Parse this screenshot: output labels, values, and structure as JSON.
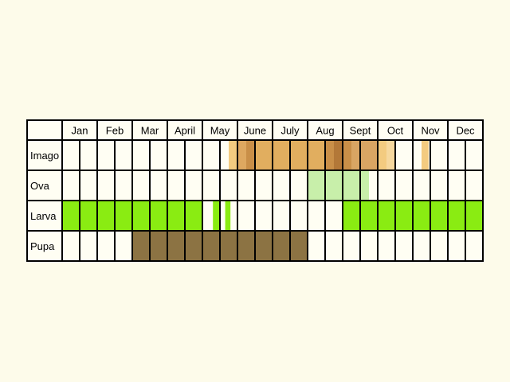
{
  "chart_data": {
    "type": "table",
    "months": [
      "Jan",
      "Feb",
      "Mar",
      "April",
      "May",
      "June",
      "July",
      "Aug",
      "Sept",
      "Oct",
      "Nov",
      "Dec"
    ],
    "rows": [
      {
        "label": "Imago",
        "segments": [
          {
            "start": 9.5,
            "end": 10.0,
            "color": "#f3cb80"
          },
          {
            "start": 10.0,
            "end": 10.5,
            "color": "#dea860"
          },
          {
            "start": 10.5,
            "end": 11.0,
            "color": "#c98f48"
          },
          {
            "start": 11.0,
            "end": 15.0,
            "color": "#e1ae5f"
          },
          {
            "start": 15.0,
            "end": 15.5,
            "color": "#c98f48"
          },
          {
            "start": 15.5,
            "end": 16.0,
            "color": "#b37838"
          },
          {
            "start": 16.0,
            "end": 16.5,
            "color": "#c98f48"
          },
          {
            "start": 16.5,
            "end": 18.0,
            "color": "#d9a563"
          },
          {
            "start": 18.0,
            "end": 18.5,
            "color": "#f3cb80"
          },
          {
            "start": 18.5,
            "end": 19.0,
            "color": "#f6d89e"
          },
          {
            "start": 20.5,
            "end": 20.9,
            "color": "#f3cb80"
          }
        ]
      },
      {
        "label": "Ova",
        "segments": [
          {
            "start": 14.0,
            "end": 17.5,
            "color": "#c8efaa"
          }
        ]
      },
      {
        "label": "Larva",
        "segments": [
          {
            "start": 0.0,
            "end": 8.0,
            "color": "#8aec12"
          },
          {
            "start": 8.6,
            "end": 9.0,
            "color": "#8aec12"
          },
          {
            "start": 9.3,
            "end": 9.6,
            "color": "#8aec12"
          },
          {
            "start": 16.0,
            "end": 24.0,
            "color": "#8aec12"
          }
        ]
      },
      {
        "label": "Pupa",
        "segments": [
          {
            "start": 4.0,
            "end": 14.0,
            "color": "#8c7343"
          }
        ]
      }
    ],
    "cell_background": "#fffef3",
    "grid_color": "#000000"
  }
}
